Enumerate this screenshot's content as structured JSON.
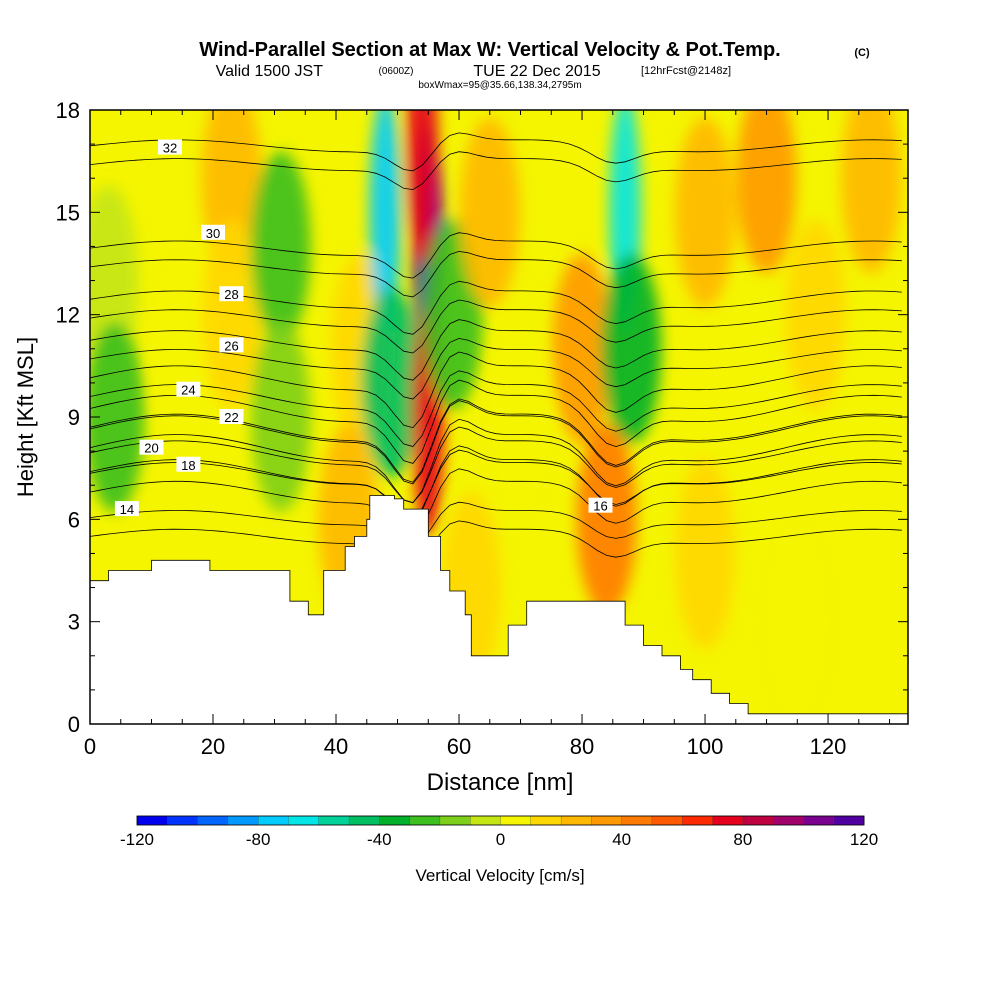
{
  "header": {
    "title": "Wind-Parallel Section at Max W: Vertical Velocity & Pot.Temp.",
    "title_mark": "(C)",
    "valid_prefix": "Valid 1500 JST",
    "valid_zulu": "(0600Z)",
    "valid_date": "TUE 22 Dec 2015",
    "valid_fcst": "[12hrFcst@2148z]",
    "box_info": "boxWmax=95@35.66,138.34,2795m"
  },
  "chart_data": {
    "type": "heatmap",
    "title": "Wind-Parallel Section at Max W: Vertical Velocity & Pot.Temp.",
    "xlabel": "Distance [nm]",
    "ylabel": "Height [Kft MSL]",
    "xlim": [
      0,
      133
    ],
    "ylim": [
      0,
      18
    ],
    "xticks": [
      0,
      20,
      40,
      60,
      80,
      100,
      120
    ],
    "yticks": [
      0,
      3,
      6,
      9,
      12,
      15,
      18
    ],
    "colorbar": {
      "label": "Vertical Velocity [cm/s]",
      "range": [
        -120,
        120
      ],
      "step": 10,
      "ticks": [
        -120,
        -80,
        -40,
        0,
        40,
        80,
        120
      ],
      "colors": [
        "#0000ee",
        "#0033ff",
        "#0066ff",
        "#0099ff",
        "#00ccff",
        "#00e5e5",
        "#00d29a",
        "#00bf62",
        "#00b02a",
        "#3cbf1f",
        "#7ecf1b",
        "#c4e614",
        "#f5f500",
        "#ffd700",
        "#ffb800",
        "#ff9900",
        "#ff7a00",
        "#ff5a00",
        "#ff2a00",
        "#e5001e",
        "#bf0040",
        "#a0006a",
        "#7a0090",
        "#5000a0"
      ]
    },
    "velocity_cells": [
      {
        "x": 3,
        "y": 13,
        "w": -10
      },
      {
        "x": 4,
        "y": 9,
        "w": -25
      },
      {
        "x": 15,
        "y": 11,
        "w": 8
      },
      {
        "x": 23,
        "y": 16,
        "w": 25
      },
      {
        "x": 23,
        "y": 12,
        "w": 15
      },
      {
        "x": 31,
        "y": 14,
        "w": -30
      },
      {
        "x": 31,
        "y": 9,
        "w": -15
      },
      {
        "x": 44,
        "y": 11,
        "w": 15
      },
      {
        "x": 48,
        "y": 15,
        "w": -75
      },
      {
        "x": 49,
        "y": 10,
        "w": -45
      },
      {
        "x": 55,
        "y": 14,
        "w": 115
      },
      {
        "x": 55,
        "y": 9,
        "w": 70
      },
      {
        "x": 54,
        "y": 17,
        "w": 70
      },
      {
        "x": 59,
        "y": 12,
        "w": -30
      },
      {
        "x": 65,
        "y": 15,
        "w": 25
      },
      {
        "x": 70,
        "y": 9,
        "w": 5
      },
      {
        "x": 80,
        "y": 11,
        "w": 30
      },
      {
        "x": 87,
        "y": 15,
        "w": -65
      },
      {
        "x": 88,
        "y": 11,
        "w": -35
      },
      {
        "x": 84,
        "y": 6,
        "w": 40
      },
      {
        "x": 100,
        "y": 15,
        "w": 20
      },
      {
        "x": 110,
        "y": 16,
        "w": 30
      },
      {
        "x": 118,
        "y": 12,
        "w": 15
      },
      {
        "x": 127,
        "y": 16,
        "w": 25
      },
      {
        "x": 100,
        "y": 5,
        "w": 10
      },
      {
        "x": 115,
        "y": 3,
        "w": 5
      },
      {
        "x": 42,
        "y": 6,
        "w": 25
      },
      {
        "x": 62,
        "y": 4,
        "w": 10
      }
    ],
    "theta_contours": [
      {
        "label": "14",
        "base": 5.5,
        "amp": 0.6,
        "label_at": [
          6,
          6.3
        ]
      },
      {
        "label": "16",
        "base": 6.8,
        "amp": 0.9,
        "label_at": [
          83,
          6.4
        ]
      },
      {
        "label": "18",
        "base": 7.4,
        "amp": 1.0,
        "label_at": [
          16,
          7.6
        ]
      },
      {
        "label": "20",
        "base": 8.1,
        "amp": 1.1,
        "label_at": [
          10,
          8.1
        ]
      },
      {
        "label": "22",
        "base": 8.7,
        "amp": 1.1,
        "label_at": [
          23,
          9.0
        ]
      },
      {
        "label": "24",
        "base": 9.6,
        "amp": 1.0,
        "label_at": [
          16,
          9.8
        ]
      },
      {
        "label": "26",
        "base": 10.7,
        "amp": 0.8,
        "label_at": [
          23,
          11.1
        ]
      },
      {
        "label": "28",
        "base": 11.9,
        "amp": 0.7,
        "label_at": [
          23,
          12.6
        ]
      },
      {
        "label": "30",
        "base": 13.4,
        "amp": 0.6,
        "label_at": [
          20,
          14.4
        ]
      },
      {
        "label": "32",
        "base": 16.4,
        "amp": 0.5,
        "label_at": [
          13,
          16.9
        ]
      }
    ],
    "terrain": [
      [
        0,
        4.2
      ],
      [
        3,
        4.2
      ],
      [
        3,
        4.5
      ],
      [
        10,
        4.5
      ],
      [
        10,
        4.8
      ],
      [
        19.5,
        4.8
      ],
      [
        19.5,
        4.5
      ],
      [
        32.5,
        4.5
      ],
      [
        32.5,
        3.6
      ],
      [
        35.5,
        3.6
      ],
      [
        35.5,
        3.2
      ],
      [
        38,
        3.2
      ],
      [
        38,
        4.5
      ],
      [
        41.5,
        4.5
      ],
      [
        41.5,
        5.2
      ],
      [
        43,
        5.2
      ],
      [
        43,
        5.5
      ],
      [
        45,
        5.5
      ],
      [
        45,
        6.0
      ],
      [
        45.5,
        6.0
      ],
      [
        45.5,
        6.7
      ],
      [
        49.5,
        6.7
      ],
      [
        49.5,
        6.6
      ],
      [
        51,
        6.6
      ],
      [
        51,
        6.3
      ],
      [
        55,
        6.3
      ],
      [
        55,
        5.5
      ],
      [
        57,
        5.5
      ],
      [
        57,
        4.5
      ],
      [
        58.5,
        4.5
      ],
      [
        58.5,
        3.9
      ],
      [
        61,
        3.9
      ],
      [
        61,
        3.2
      ],
      [
        62,
        3.2
      ],
      [
        62,
        2.0
      ],
      [
        68,
        2.0
      ],
      [
        68,
        2.9
      ],
      [
        71,
        2.9
      ],
      [
        71,
        3.6
      ],
      [
        87,
        3.6
      ],
      [
        87,
        2.9
      ],
      [
        90,
        2.9
      ],
      [
        90,
        2.3
      ],
      [
        93,
        2.3
      ],
      [
        93,
        2.0
      ],
      [
        96,
        2.0
      ],
      [
        96,
        1.6
      ],
      [
        98,
        1.6
      ],
      [
        98,
        1.3
      ],
      [
        101,
        1.3
      ],
      [
        101,
        0.9
      ],
      [
        104,
        0.9
      ],
      [
        104,
        0.6
      ],
      [
        107,
        0.6
      ],
      [
        107,
        0.3
      ],
      [
        133,
        0.3
      ],
      [
        133,
        0
      ]
    ]
  }
}
